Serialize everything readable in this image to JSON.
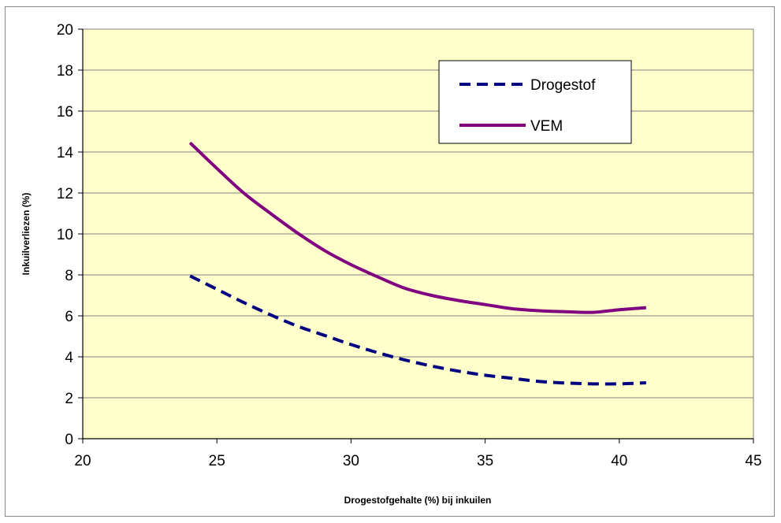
{
  "chart_data": {
    "type": "line",
    "title": "",
    "xlabel": "Drogestofgehalte (%) bij inkuilen",
    "ylabel": "Inkuilverliezen (%)",
    "xlim": [
      20,
      45
    ],
    "ylim": [
      0,
      20
    ],
    "x_ticks": [
      20,
      25,
      30,
      35,
      40,
      45
    ],
    "y_ticks": [
      0,
      2,
      4,
      6,
      8,
      10,
      12,
      14,
      16,
      18,
      20
    ],
    "grid": "horizontal",
    "legend_position": "top-right",
    "plot_background": "#FFFFCC",
    "series": [
      {
        "name": "Drogestof",
        "color": "#000080",
        "style": "dashed",
        "x": [
          24,
          25,
          26,
          27,
          28,
          29,
          30,
          31,
          32,
          33,
          34,
          35,
          36,
          37,
          38,
          39,
          40,
          41
        ],
        "y": [
          7.95,
          7.3,
          6.65,
          6.05,
          5.5,
          5.05,
          4.6,
          4.2,
          3.85,
          3.55,
          3.3,
          3.1,
          2.95,
          2.8,
          2.72,
          2.68,
          2.68,
          2.73
        ]
      },
      {
        "name": "VEM",
        "color": "#800080",
        "style": "solid",
        "x": [
          24,
          25,
          26,
          27,
          28,
          29,
          30,
          31,
          32,
          33,
          34,
          35,
          36,
          37,
          38,
          39,
          40,
          41
        ],
        "y": [
          14.45,
          13.2,
          12.0,
          11.0,
          10.05,
          9.2,
          8.5,
          7.9,
          7.35,
          7.0,
          6.75,
          6.55,
          6.35,
          6.25,
          6.2,
          6.17,
          6.3,
          6.4
        ]
      }
    ]
  }
}
